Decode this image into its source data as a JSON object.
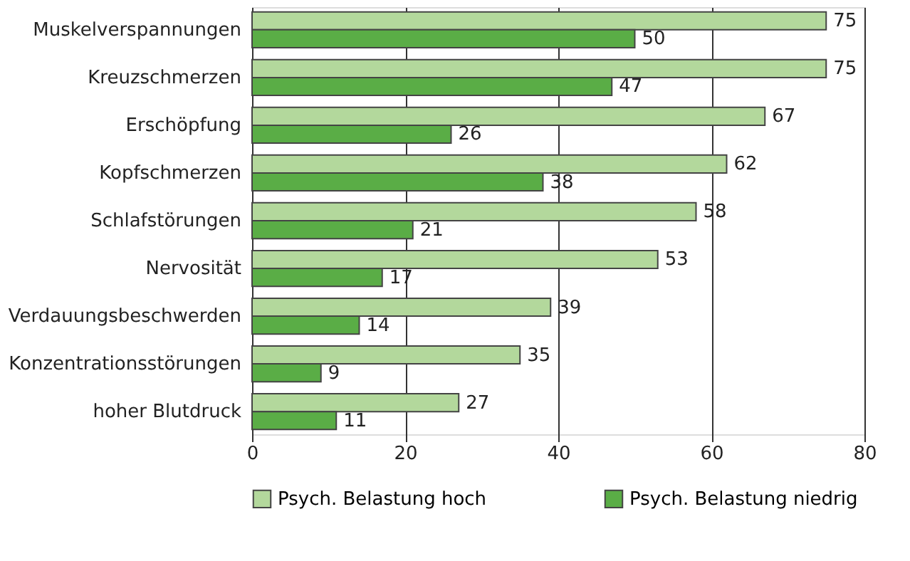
{
  "chart_data": {
    "type": "bar",
    "orientation": "horizontal",
    "categories": [
      "Muskelverspannungen",
      "Kreuzschmerzen",
      "Erschöpfung",
      "Kopfschmerzen",
      "Schlafstörungen",
      "Nervosität",
      "Verdauungsbeschwerden",
      "Konzentrationsstörungen",
      "hoher Blutdruck"
    ],
    "series": [
      {
        "name": "Psych. Belastung hoch",
        "color": "#b3d89c",
        "values": [
          75,
          75,
          67,
          62,
          58,
          53,
          39,
          35,
          27
        ]
      },
      {
        "name": "Psych. Belastung niedrig",
        "color": "#5aad46",
        "values": [
          50,
          47,
          26,
          38,
          21,
          17,
          14,
          9,
          11
        ]
      }
    ],
    "xlim": [
      0,
      80
    ],
    "xticks": [
      0,
      20,
      40,
      60,
      80
    ],
    "grid": "x",
    "legend": "bottom",
    "data_labels": true
  }
}
